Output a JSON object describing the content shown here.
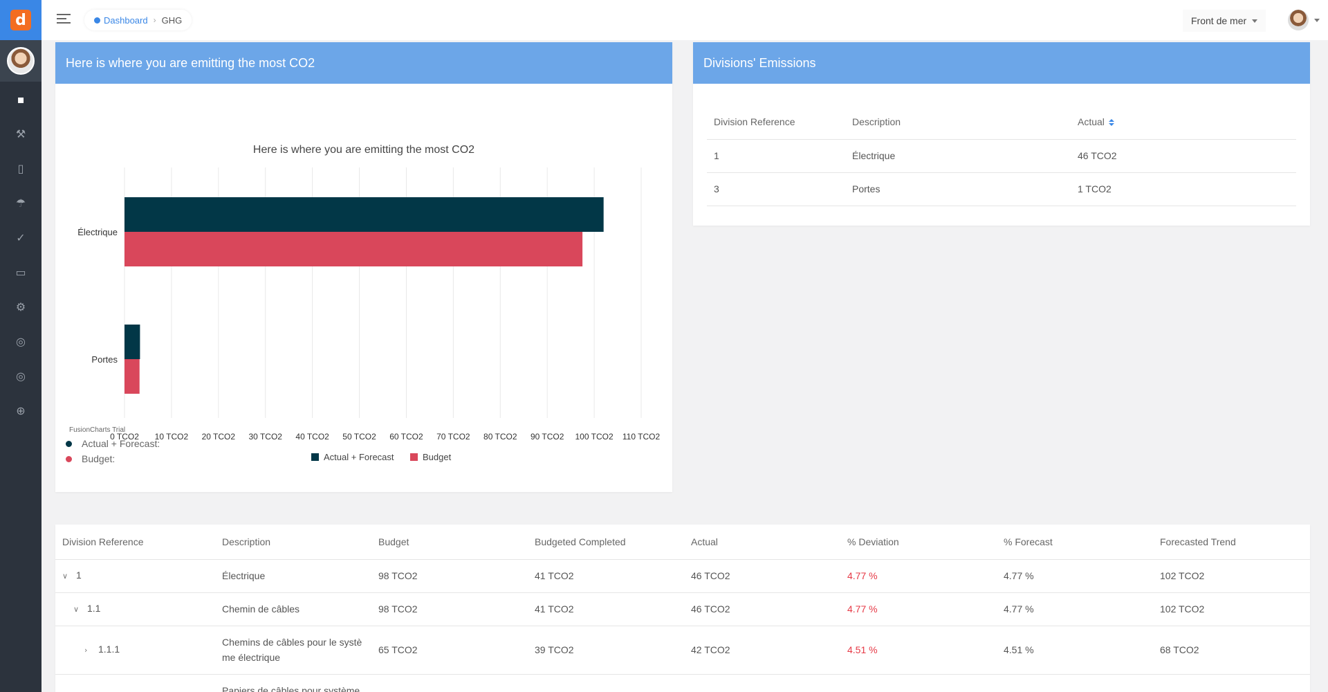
{
  "topbar": {
    "breadcrumb": {
      "home": "Dashboard",
      "current": "GHG"
    },
    "project_select": "Front de mer"
  },
  "sidebar": {
    "logo": "d",
    "items": [
      {
        "icon": "briefcase-icon",
        "glyph": "▪"
      },
      {
        "icon": "tools-icon",
        "glyph": "⚒"
      },
      {
        "icon": "building-icon",
        "glyph": "▯"
      },
      {
        "icon": "tree-icon",
        "glyph": "☂"
      },
      {
        "icon": "check-icon",
        "glyph": "✓"
      },
      {
        "icon": "folder-icon",
        "glyph": "▭"
      },
      {
        "icon": "gear-icon",
        "glyph": "⚙"
      },
      {
        "icon": "globe-icon",
        "glyph": "◎"
      },
      {
        "icon": "globe-alt-icon",
        "glyph": "◎"
      },
      {
        "icon": "plus-circle-icon",
        "glyph": "⊕"
      }
    ]
  },
  "chart_card": {
    "header": "Here is where you are emitting the most CO2",
    "trial_label": "FusionCharts Trial",
    "tooltip_legend": [
      {
        "label": "Actual + Forecast:",
        "color": "#023747"
      },
      {
        "label": "Budget:",
        "color": "#d9475b"
      }
    ]
  },
  "chart_data": {
    "type": "bar",
    "orientation": "horizontal",
    "title": "Here is where you are emitting the most CO2",
    "categories": [
      "Électrique",
      "Portes"
    ],
    "series": [
      {
        "name": "Actual + Forecast",
        "color": "#023747",
        "values": [
          102,
          3.3
        ]
      },
      {
        "name": "Budget",
        "color": "#d9475b",
        "values": [
          97.5,
          3.2
        ]
      }
    ],
    "xlim": [
      0,
      110
    ],
    "ticks": [
      "0 TCO2",
      "10 TCO2",
      "20 TCO2",
      "30 TCO2",
      "40 TCO2",
      "50 TCO2",
      "60 TCO2",
      "70 TCO2",
      "80 TCO2",
      "90 TCO2",
      "100 TCO2",
      "110 TCO2"
    ],
    "tick_values": [
      0,
      10,
      20,
      30,
      40,
      50,
      60,
      70,
      80,
      90,
      100,
      110
    ],
    "grid": true,
    "legend": "bottom-center"
  },
  "divisions_card": {
    "header": "Divisions' Emissions",
    "columns": [
      "Division Reference",
      "Description",
      "Actual"
    ],
    "rows": [
      {
        "ref": "1",
        "desc": "Électrique",
        "actual": "46 TCO2"
      },
      {
        "ref": "3",
        "desc": "Portes",
        "actual": "1 TCO2"
      }
    ]
  },
  "details_table": {
    "columns": [
      "Division Reference",
      "Description",
      "Budget",
      "Budgeted Completed",
      "Actual",
      "% Deviation",
      "% Forecast",
      "Forecasted Trend"
    ],
    "rows": [
      {
        "ref": "1",
        "desc": "Électrique",
        "budget": "98 TCO2",
        "completed": "41 TCO2",
        "actual": "46 TCO2",
        "deviation": "4.77 %",
        "forecast": "4.77 %",
        "trend": "102 TCO2"
      },
      {
        "ref": "1.1",
        "desc": "Chemin de câbles",
        "budget": "98 TCO2",
        "completed": "41 TCO2",
        "actual": "46 TCO2",
        "deviation": "4.77 %",
        "forecast": "4.77 %",
        "trend": "102 TCO2"
      },
      {
        "ref": "1.1.1",
        "desc": "Chemins de câbles pour le systè me électrique",
        "budget": "65 TCO2",
        "completed": "39 TCO2",
        "actual": "42 TCO2",
        "deviation": "4.51 %",
        "forecast": "4.51 %",
        "trend": "68 TCO2"
      },
      {
        "ref": "",
        "desc": "Papiers de câbles pour système",
        "budget": "",
        "completed": "",
        "actual": "",
        "deviation": "",
        "forecast": "",
        "trend": ""
      }
    ]
  }
}
